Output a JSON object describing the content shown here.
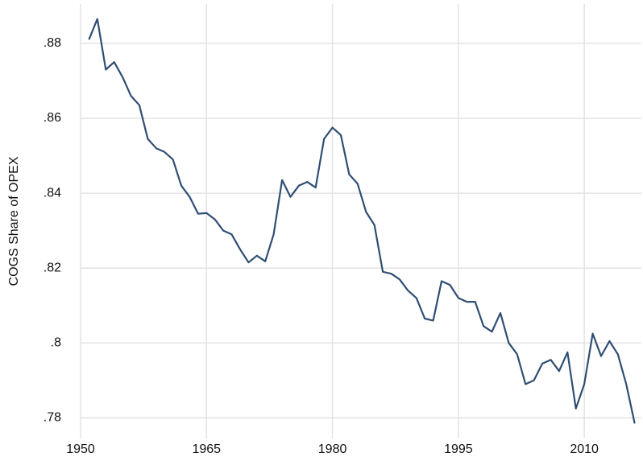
{
  "chart_data": {
    "type": "line",
    "y_label": "COGS Share of OPEX",
    "x": [
      1951,
      1952,
      1953,
      1954,
      1955,
      1956,
      1957,
      1958,
      1959,
      1960,
      1961,
      1962,
      1963,
      1964,
      1965,
      1966,
      1967,
      1968,
      1969,
      1970,
      1971,
      1972,
      1973,
      1974,
      1975,
      1976,
      1977,
      1978,
      1979,
      1980,
      1981,
      1982,
      1983,
      1984,
      1985,
      1986,
      1987,
      1988,
      1989,
      1990,
      1991,
      1992,
      1993,
      1994,
      1995,
      1996,
      1997,
      1998,
      1999,
      2000,
      2001,
      2002,
      2003,
      2004,
      2005,
      2006,
      2007,
      2008,
      2009,
      2010,
      2011,
      2012,
      2013,
      2014,
      2015,
      2016
    ],
    "series": [
      {
        "color": "#2f4e73",
        "values": [
          0.881,
          0.8865,
          0.873,
          0.875,
          0.871,
          0.866,
          0.8635,
          0.8545,
          0.852,
          0.851,
          0.849,
          0.842,
          0.839,
          0.8345,
          0.8347,
          0.833,
          0.83,
          0.829,
          0.825,
          0.8215,
          0.8233,
          0.8218,
          0.829,
          0.8435,
          0.839,
          0.842,
          0.843,
          0.8415,
          0.8545,
          0.8575,
          0.8555,
          0.845,
          0.8425,
          0.835,
          0.8315,
          0.819,
          0.8185,
          0.817,
          0.814,
          0.812,
          0.8065,
          0.806,
          0.8165,
          0.8155,
          0.812,
          0.811,
          0.811,
          0.8045,
          0.803,
          0.808,
          0.8,
          0.797,
          0.789,
          0.79,
          0.7945,
          0.7955,
          0.7925,
          0.7975,
          0.7825,
          0.789,
          0.8025,
          0.7965,
          0.8005,
          0.797,
          0.789,
          0.7785
        ]
      }
    ],
    "xlim": [
      1950,
      2016.8
    ],
    "xticks": [
      1950,
      1965,
      1980,
      1995,
      2010
    ],
    "ylim": [
      0.7745,
      0.8905
    ],
    "yticks": [
      {
        "value": 0.78,
        "label": ".78"
      },
      {
        "value": 0.8,
        "label": ".8"
      },
      {
        "value": 0.82,
        "label": ".82"
      },
      {
        "value": 0.84,
        "label": ".84"
      },
      {
        "value": 0.86,
        "label": ".86"
      },
      {
        "value": 0.88,
        "label": ".88"
      }
    ],
    "grid": true
  }
}
